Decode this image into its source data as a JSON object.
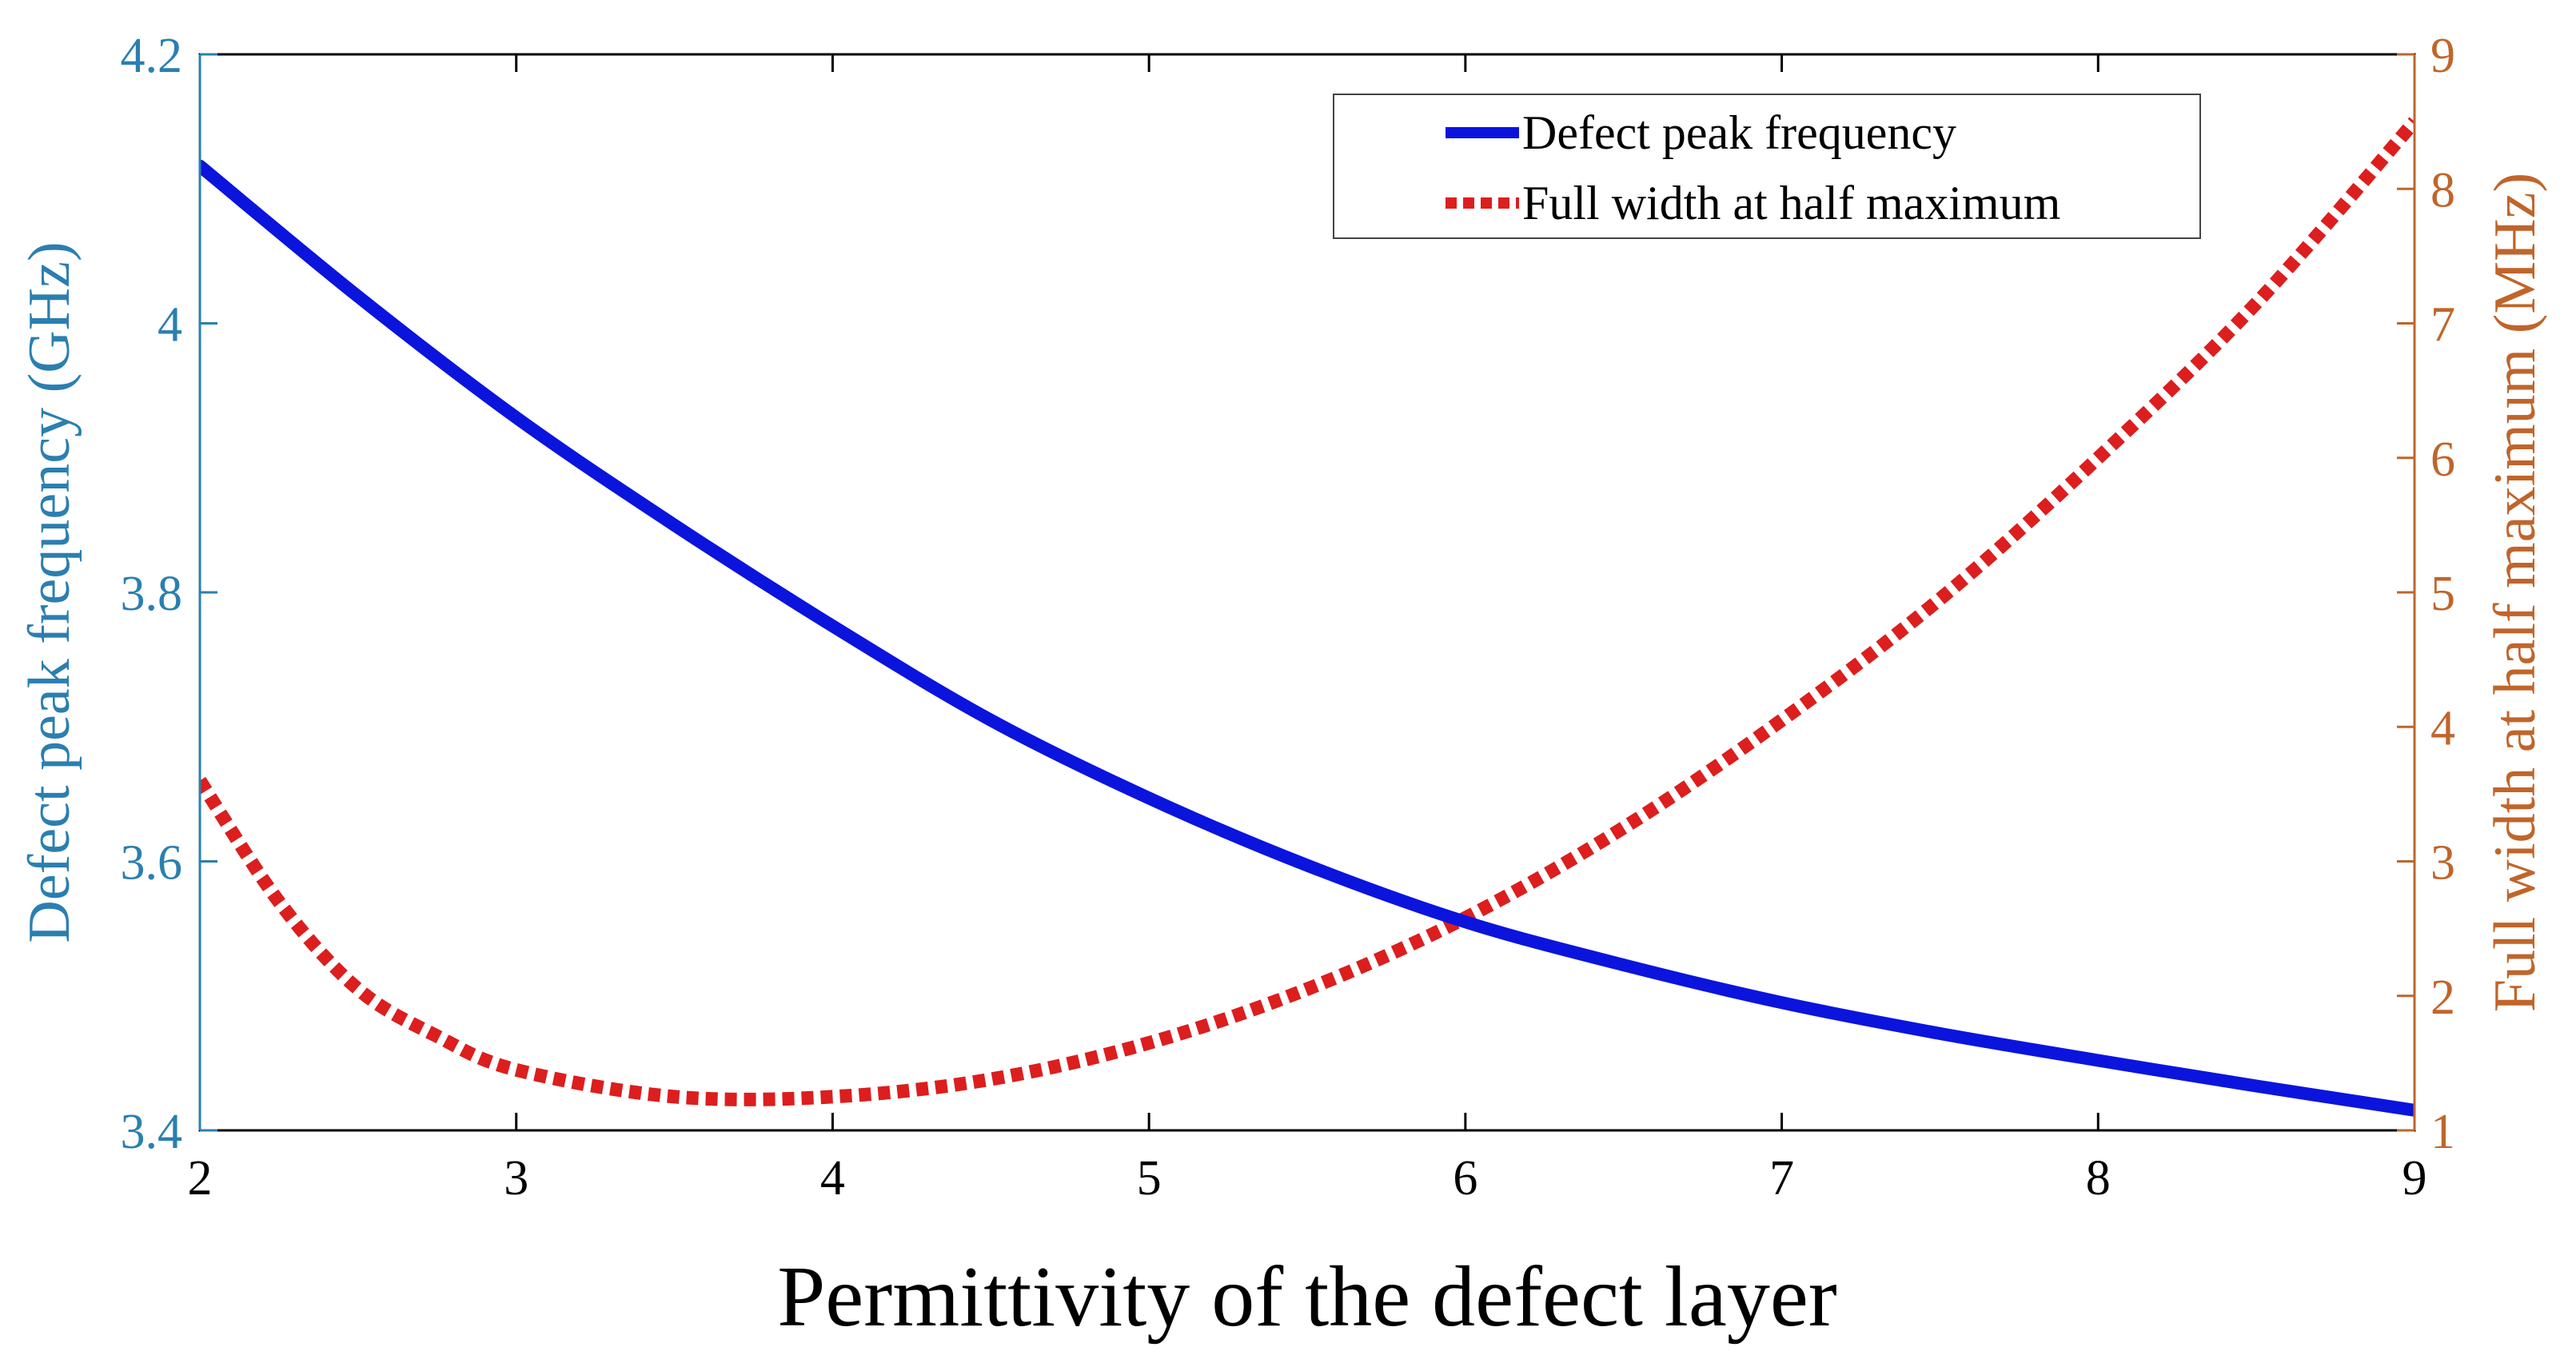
{
  "chart_data": {
    "type": "line",
    "title": "",
    "xlabel": "Permittivity of the defect layer",
    "ylabel_left": "Defect peak frequency (GHz)",
    "ylabel_right": "Full width at half maximum  (MHz)",
    "xlim": [
      2,
      9
    ],
    "ylim_left": [
      3.4,
      4.2
    ],
    "ylim_right": [
      1,
      9
    ],
    "x_ticks": [
      "2",
      "3",
      "4",
      "5",
      "6",
      "7",
      "8",
      "9"
    ],
    "y_left_ticks": [
      "3.4",
      "3.6",
      "3.8",
      "4",
      "4.2"
    ],
    "y_right_ticks": [
      "1",
      "2",
      "3",
      "4",
      "5",
      "6",
      "7",
      "8",
      "9"
    ],
    "grid": false,
    "legend_position": "top-right",
    "colors": {
      "left_axis": "#2a7fb0",
      "right_axis": "#c0652b",
      "series_freq": "#0b14dc",
      "series_fwhm": "#dc1e1e",
      "axes": "#000000"
    },
    "series": [
      {
        "name": "Defect peak frequency",
        "axis": "left",
        "style": "solid",
        "x": [
          2,
          2.5,
          3,
          3.5,
          4,
          4.5,
          5,
          5.5,
          6,
          6.5,
          7,
          7.5,
          8,
          8.5,
          9
        ],
        "values": [
          4.117,
          4.02,
          3.93,
          3.85,
          3.775,
          3.705,
          3.647,
          3.597,
          3.555,
          3.523,
          3.495,
          3.472,
          3.452,
          3.433,
          3.415
        ]
      },
      {
        "name": "Full width at half maximum",
        "axis": "right",
        "style": "dotted",
        "x": [
          2,
          2.25,
          2.5,
          2.75,
          3,
          3.5,
          4,
          4.5,
          5,
          5.5,
          6,
          6.5,
          7,
          7.5,
          8,
          8.5,
          9
        ],
        "values": [
          3.6,
          2.7,
          2.05,
          1.7,
          1.45,
          1.25,
          1.25,
          1.38,
          1.65,
          2.05,
          2.58,
          3.25,
          4.05,
          4.95,
          6.0,
          7.15,
          8.5
        ]
      }
    ]
  }
}
